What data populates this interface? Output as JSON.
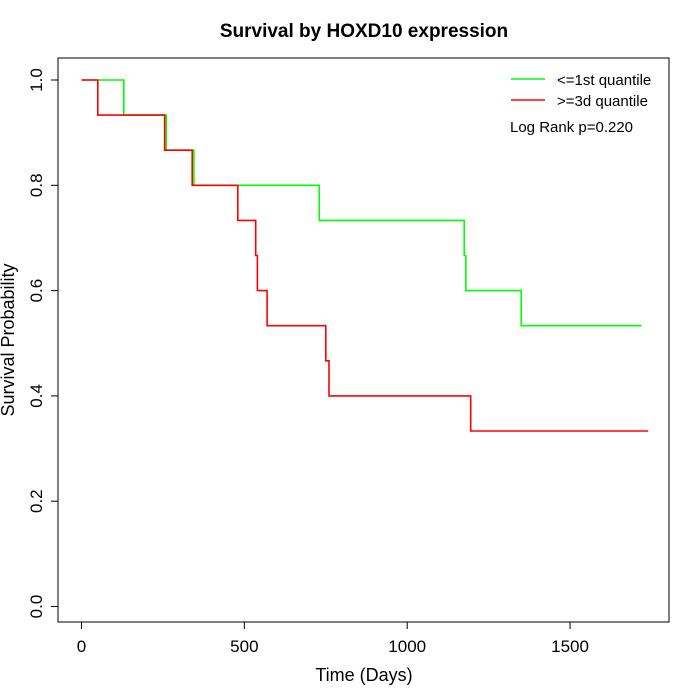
{
  "chart_data": {
    "type": "line",
    "subtype": "kaplan-meier step",
    "title": "Survival by HOXD10 expression",
    "xlabel": "Time (Days)",
    "ylabel": "Survival Probability",
    "xlim": [
      0,
      1800
    ],
    "ylim": [
      0,
      1
    ],
    "x_ticks": [
      0,
      500,
      1000,
      1500
    ],
    "y_ticks": [
      0.0,
      0.2,
      0.4,
      0.6,
      0.8,
      1.0
    ],
    "x_tick_labels": [
      "0",
      "500",
      "1000",
      "1500"
    ],
    "y_tick_labels": [
      "0.0",
      "0.2",
      "0.4",
      "0.6",
      "0.8",
      "1.0"
    ],
    "grid": false,
    "legend_position": "top-right",
    "annotation": "Log Rank p=0.220",
    "series": [
      {
        "name": "<=1st quantile",
        "color": "#00ff00",
        "steps": [
          [
            0,
            1.0
          ],
          [
            130,
            0.9333
          ],
          [
            260,
            0.8667
          ],
          [
            345,
            0.8
          ],
          [
            730,
            0.7333
          ],
          [
            1175,
            0.6667
          ],
          [
            1180,
            0.6
          ],
          [
            1350,
            0.5333
          ],
          [
            1720,
            0.5333
          ]
        ]
      },
      {
        "name": ">=3d quantile",
        "color": "#ff0000",
        "steps": [
          [
            0,
            1.0
          ],
          [
            50,
            0.9333
          ],
          [
            255,
            0.8667
          ],
          [
            340,
            0.8
          ],
          [
            480,
            0.7333
          ],
          [
            535,
            0.6667
          ],
          [
            540,
            0.6
          ],
          [
            570,
            0.5333
          ],
          [
            750,
            0.4667
          ],
          [
            760,
            0.4
          ],
          [
            1195,
            0.3333
          ],
          [
            1740,
            0.3333
          ]
        ]
      }
    ]
  }
}
